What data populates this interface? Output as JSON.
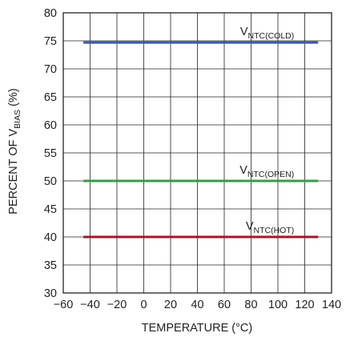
{
  "chart_data": {
    "type": "line",
    "title": "",
    "xlabel": "TEMPERATURE (°C)",
    "ylabel": {
      "prefix": "PERCENT OF V",
      "sub": "BIAS",
      "suffix": " (%)"
    },
    "xlim": [
      -60,
      140
    ],
    "ylim": [
      30,
      80
    ],
    "xticks": [
      -60,
      -40,
      -20,
      0,
      20,
      40,
      60,
      80,
      100,
      120,
      140
    ],
    "xtick_labels": [
      "−60",
      "−40",
      "−20",
      "0",
      "20",
      "40",
      "60",
      "80",
      "100",
      "120",
      "140"
    ],
    "yticks": [
      30,
      35,
      40,
      45,
      50,
      55,
      60,
      65,
      70,
      75,
      80
    ],
    "grid": true,
    "series": [
      {
        "name": {
          "main": "V",
          "sub": "NTC(COLD)"
        },
        "color": "#3a5ba8",
        "x": [
          -45,
          130
        ],
        "y": [
          74.7,
          74.7
        ]
      },
      {
        "name": {
          "main": "V",
          "sub": "NTC(OPEN)"
        },
        "color": "#3a9a4a",
        "x": [
          -45,
          130
        ],
        "y": [
          50.0,
          50.0
        ]
      },
      {
        "name": {
          "main": "V",
          "sub": "NTC(HOT)"
        },
        "color": "#a0182e",
        "x": [
          -45,
          130
        ],
        "y": [
          40.0,
          40.0
        ]
      }
    ]
  }
}
